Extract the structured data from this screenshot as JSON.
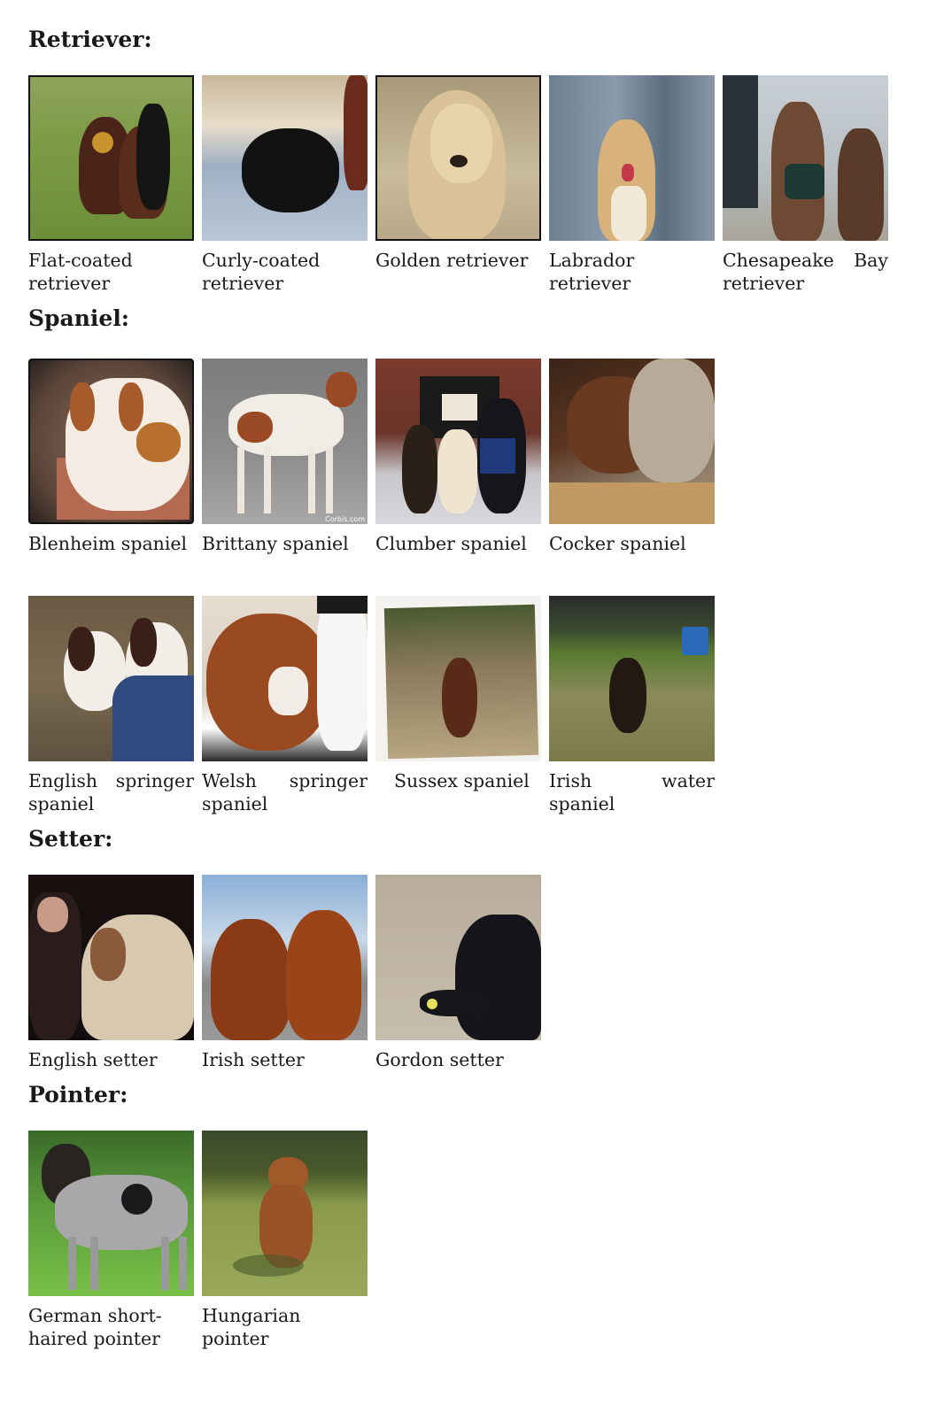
{
  "sections": {
    "retriever": {
      "title": "Retriever:",
      "items": [
        "Flat-coated retriever",
        "Curly-coated retriever",
        "Golden retriever",
        "Labrador retriever",
        "Chesapeake Bay retriever"
      ]
    },
    "spaniel": {
      "title": "Spaniel:",
      "items": [
        "Blenheim spaniel",
        "Brittany spaniel",
        "Clumber spaniel",
        "Cocker spaniel",
        "English springer spaniel",
        "Welsh springer spaniel",
        "Sussex spaniel",
        "Irish water spaniel"
      ]
    },
    "setter": {
      "title": "Setter:",
      "items": [
        "English setter",
        "Irish setter",
        "Gordon setter"
      ]
    },
    "pointer": {
      "title": "Pointer:",
      "items": [
        "German short-haired pointer",
        "Hungarian pointer"
      ]
    }
  },
  "photo_watermark": "Corbis.com"
}
